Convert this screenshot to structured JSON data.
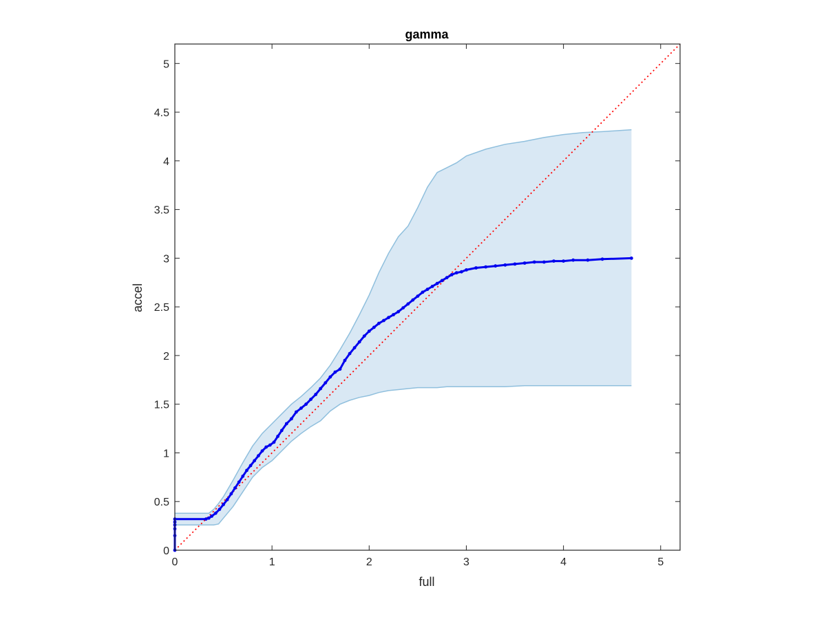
{
  "chart_data": {
    "type": "scatter",
    "title": "gamma",
    "xlabel": "full",
    "ylabel": "accel",
    "xlim": [
      0,
      5.2
    ],
    "ylim": [
      0,
      5.2
    ],
    "xticks": [
      0,
      1,
      2,
      3,
      4,
      5
    ],
    "yticks": [
      0,
      0.5,
      1,
      1.5,
      2,
      2.5,
      3,
      3.5,
      4,
      4.5,
      5
    ],
    "grid": false,
    "box": true,
    "reference_line": {
      "style": "dotted",
      "color": "#ff0000",
      "from": [
        0,
        0
      ],
      "to": [
        5.2,
        5.2
      ]
    },
    "band": {
      "fill": "#d9e8f4",
      "edge": "#8fbfdd",
      "x": [
        0,
        0.25,
        0.35,
        0.4,
        0.45,
        0.5,
        0.6,
        0.7,
        0.8,
        0.9,
        1.0,
        1.1,
        1.2,
        1.3,
        1.4,
        1.5,
        1.6,
        1.7,
        1.8,
        1.9,
        2.0,
        2.1,
        2.2,
        2.3,
        2.4,
        2.5,
        2.6,
        2.7,
        2.8,
        2.9,
        3.0,
        3.2,
        3.4,
        3.6,
        3.8,
        4.0,
        4.2,
        4.4,
        4.7
      ],
      "upper": [
        0.38,
        0.38,
        0.38,
        0.42,
        0.48,
        0.55,
        0.72,
        0.9,
        1.07,
        1.2,
        1.3,
        1.4,
        1.5,
        1.58,
        1.67,
        1.77,
        1.9,
        2.06,
        2.23,
        2.42,
        2.62,
        2.85,
        3.05,
        3.22,
        3.33,
        3.52,
        3.73,
        3.88,
        3.93,
        3.98,
        4.05,
        4.12,
        4.17,
        4.2,
        4.24,
        4.27,
        4.29,
        4.3,
        4.32
      ],
      "lower": [
        0.26,
        0.26,
        0.26,
        0.26,
        0.27,
        0.33,
        0.45,
        0.6,
        0.75,
        0.85,
        0.92,
        1.02,
        1.12,
        1.2,
        1.27,
        1.33,
        1.43,
        1.5,
        1.54,
        1.57,
        1.59,
        1.62,
        1.64,
        1.65,
        1.66,
        1.67,
        1.67,
        1.67,
        1.68,
        1.68,
        1.68,
        1.68,
        1.68,
        1.69,
        1.69,
        1.69,
        1.69,
        1.69,
        1.69
      ]
    },
    "series": [
      {
        "color": "#0000ee",
        "marker": "point",
        "x": [
          0,
          0,
          0,
          0,
          0,
          0,
          0.32,
          0.35,
          0.38,
          0.42,
          0.46,
          0.5,
          0.54,
          0.58,
          0.62,
          0.66,
          0.7,
          0.74,
          0.78,
          0.82,
          0.86,
          0.9,
          0.94,
          0.98,
          1.02,
          1.06,
          1.1,
          1.15,
          1.2,
          1.25,
          1.3,
          1.35,
          1.4,
          1.45,
          1.5,
          1.55,
          1.6,
          1.65,
          1.7,
          1.75,
          1.8,
          1.85,
          1.9,
          1.95,
          2.0,
          2.05,
          2.1,
          2.15,
          2.2,
          2.25,
          2.3,
          2.35,
          2.4,
          2.45,
          2.5,
          2.55,
          2.6,
          2.65,
          2.7,
          2.75,
          2.8,
          2.85,
          2.9,
          2.95,
          3.0,
          3.1,
          3.2,
          3.3,
          3.4,
          3.5,
          3.6,
          3.7,
          3.8,
          3.9,
          4.0,
          4.1,
          4.25,
          4.4,
          4.7
        ],
        "y": [
          0,
          0.15,
          0.22,
          0.26,
          0.29,
          0.32,
          0.32,
          0.33,
          0.35,
          0.38,
          0.42,
          0.47,
          0.52,
          0.58,
          0.64,
          0.7,
          0.76,
          0.82,
          0.87,
          0.92,
          0.97,
          1.02,
          1.06,
          1.08,
          1.11,
          1.17,
          1.23,
          1.3,
          1.35,
          1.42,
          1.46,
          1.5,
          1.55,
          1.6,
          1.66,
          1.72,
          1.78,
          1.83,
          1.86,
          1.95,
          2.02,
          2.08,
          2.14,
          2.2,
          2.25,
          2.29,
          2.33,
          2.36,
          2.39,
          2.42,
          2.45,
          2.49,
          2.53,
          2.57,
          2.61,
          2.65,
          2.68,
          2.71,
          2.74,
          2.77,
          2.8,
          2.83,
          2.85,
          2.86,
          2.88,
          2.9,
          2.91,
          2.92,
          2.93,
          2.94,
          2.95,
          2.96,
          2.96,
          2.97,
          2.97,
          2.98,
          2.98,
          2.99,
          3.0
        ]
      }
    ]
  }
}
